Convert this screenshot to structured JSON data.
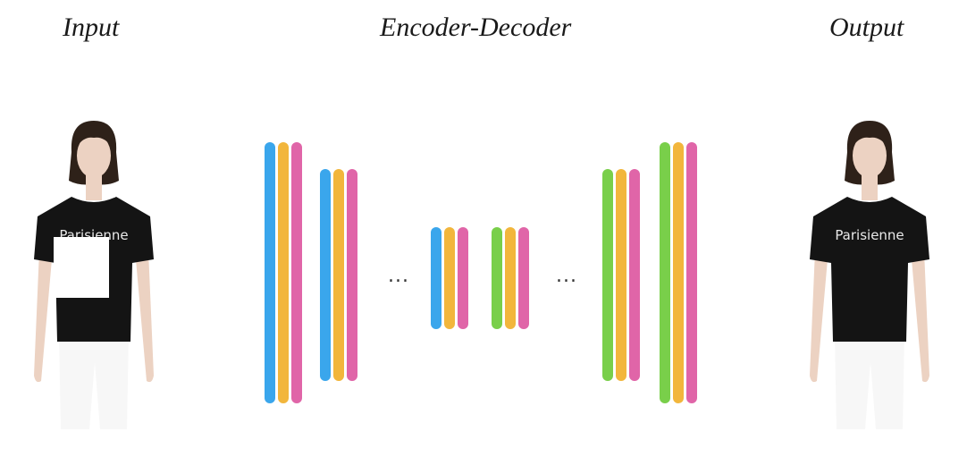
{
  "titles": {
    "input": "Input",
    "encoder_decoder": "Encoder-Decoder",
    "output": "Output"
  },
  "shirt_text": "Parisienne",
  "ellipsis": "...",
  "colors": {
    "blue": "#3aa6ec",
    "orange": "#f2b63c",
    "pink": "#e065a8",
    "green": "#79cf4a",
    "shirt": "#141414",
    "skin": "#ecd2c2",
    "hair": "#2e2119",
    "pants": "#f7f7f7"
  },
  "network": {
    "encoder_blocks": [
      {
        "bars": [
          "blue",
          "orange",
          "pink"
        ],
        "size": "large"
      },
      {
        "bars": [
          "blue",
          "orange",
          "pink"
        ],
        "size": "medium"
      },
      {
        "bars": [
          "blue",
          "orange",
          "pink"
        ],
        "size": "small"
      }
    ],
    "decoder_blocks": [
      {
        "bars": [
          "green",
          "orange",
          "pink"
        ],
        "size": "small"
      },
      {
        "bars": [
          "green",
          "orange",
          "pink"
        ],
        "size": "medium"
      },
      {
        "bars": [
          "green",
          "orange",
          "pink"
        ],
        "size": "large"
      }
    ]
  }
}
